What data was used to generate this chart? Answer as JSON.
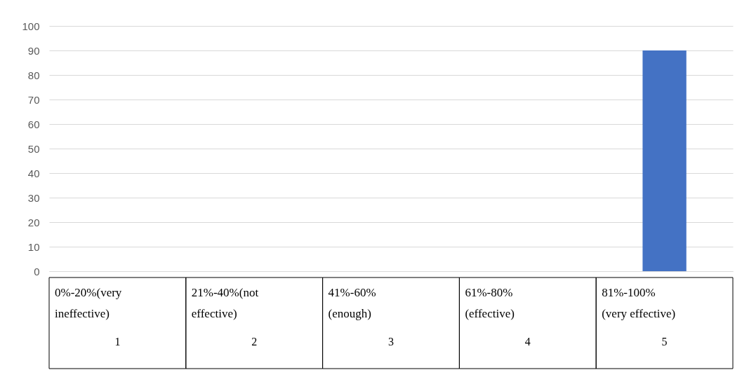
{
  "chart_data": {
    "type": "bar",
    "categories": [
      "0%-20%(very ineffective)",
      "21%-40%(not effective)",
      "41%-60% (enough)",
      "61%-80% (effective)",
      "81%-100% (very effective)"
    ],
    "values": [
      0,
      0,
      0,
      0,
      90
    ],
    "color": "#4472c4",
    "ylim": [
      0,
      100
    ],
    "yticks": [
      0,
      10,
      20,
      30,
      40,
      50,
      60,
      70,
      80,
      90,
      100
    ],
    "grid": "y",
    "annotations": [
      "1",
      "2",
      "3",
      "4",
      "5"
    ]
  }
}
